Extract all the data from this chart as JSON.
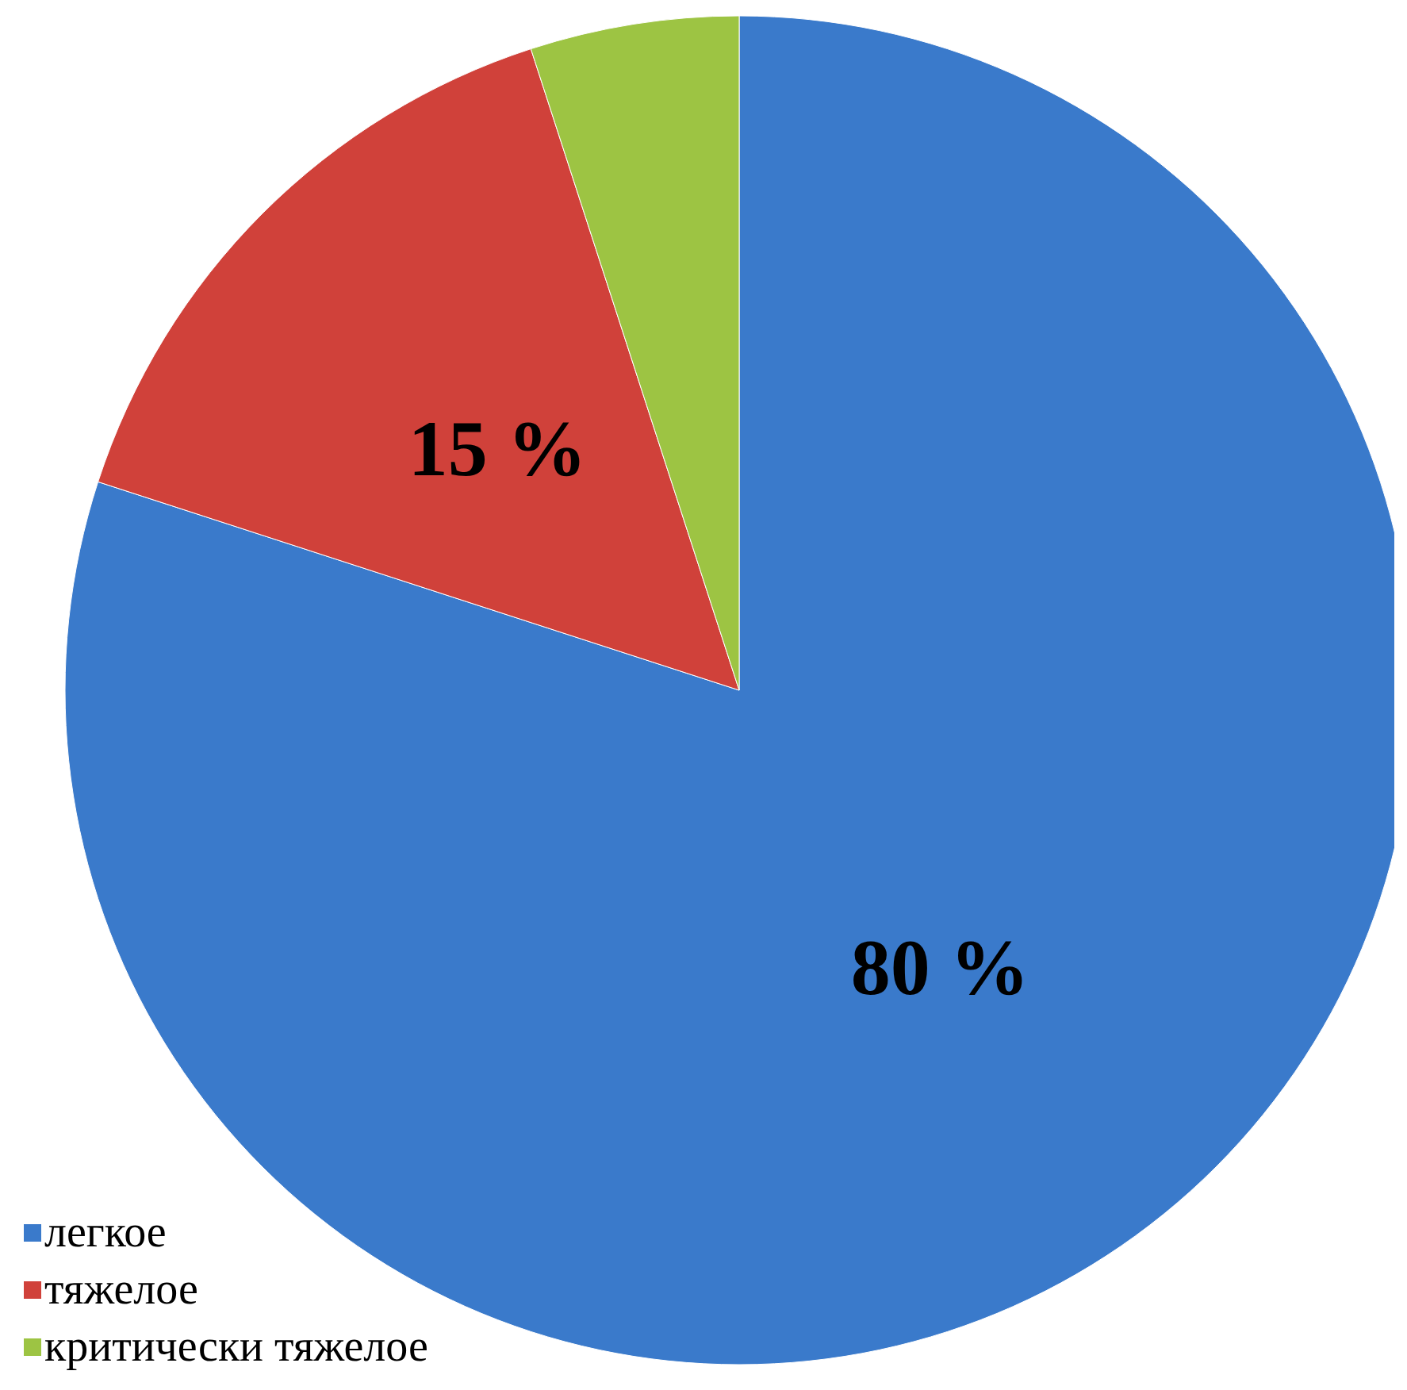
{
  "chart_data": {
    "type": "pie",
    "categories": [
      "легкое",
      "тяжелое",
      "критически тяжелое"
    ],
    "values": [
      80,
      15,
      5
    ],
    "colors": [
      "#3a7acb",
      "#d0413a",
      "#9dc443"
    ],
    "value_labels": [
      "80 %",
      "15 %",
      null
    ],
    "legend": "bottom left"
  }
}
